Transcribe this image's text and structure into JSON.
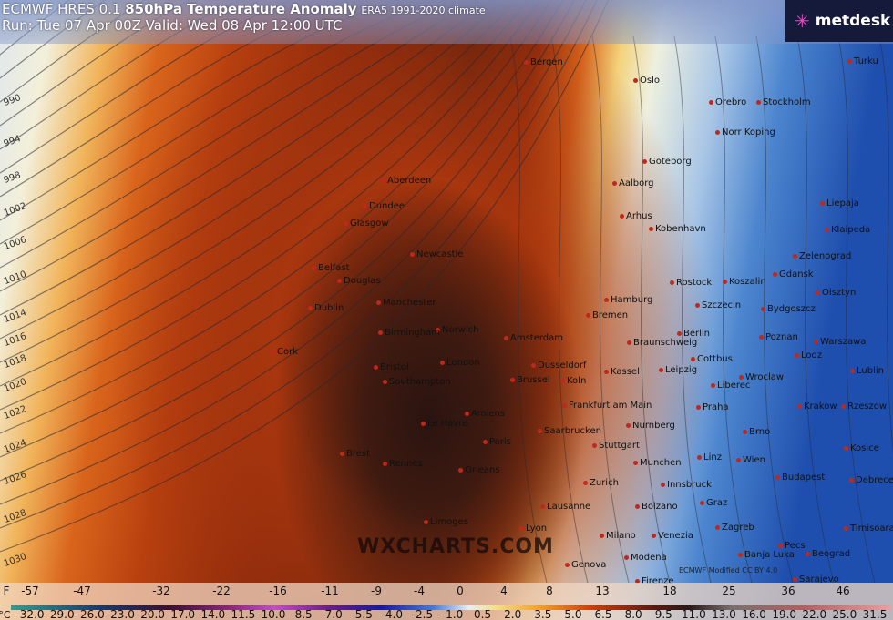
{
  "header": {
    "model": "ECMWF HRES 0.1",
    "product": "850hPa Temperature Anomaly",
    "climate": "ERA5 1991-2020 climate",
    "run_line": "Run: Tue 07 Apr 00Z Valid: Wed 08 Apr 12:00 UTC"
  },
  "logo": {
    "text": "metdesk"
  },
  "watermark": "WXCHARTS.COM",
  "credit": "ECMWF Modified CC BY 4.0",
  "isobars": [
    "990",
    "994",
    "998",
    "1002",
    "1006",
    "1010",
    "1014",
    "1016",
    "1018",
    "1020",
    "1022",
    "1024",
    "1026",
    "1028",
    "1030"
  ],
  "cities": [
    "Bergen",
    "Oslo",
    "Orebro",
    "Stockholm",
    "Turku",
    "Norr Koping",
    "Goteborg",
    "Aalborg",
    "Aberdeen",
    "Dundee",
    "Glasgow",
    "Arhus",
    "Kobenhavn",
    "Liepaja",
    "Klaipeda",
    "Belfast",
    "Newcastle",
    "Douglas",
    "Rostock",
    "Zelenograd",
    "Gdansk",
    "Olsztyn",
    "Dublin",
    "Manchester",
    "Hamburg",
    "Koszalin",
    "Szczecin",
    "Bydgoszcz",
    "Norwich",
    "Amsterdam",
    "Bremen",
    "Birmingham",
    "Cork",
    "Berlin",
    "Poznan",
    "Braunschweig",
    "Warszawa",
    "London",
    "Bristol",
    "Southampton",
    "Dusseldorf",
    "Koln",
    "Kassel",
    "Leipzig",
    "Cottbus",
    "Lodz",
    "Wroclaw",
    "Lublin",
    "Liberec",
    "Brussel",
    "Frankfurt am Main",
    "Praha",
    "Krakow",
    "Rzeszow",
    "Amiens",
    "Le Havre",
    "Saarbrucken",
    "Nurnberg",
    "Brno",
    "Paris",
    "Stuttgart",
    "Kosice",
    "Brest",
    "Rennes",
    "Orleans",
    "Munchen",
    "Linz",
    "Wien",
    "Debrecen",
    "Zurich",
    "Innsbruck",
    "Budapest",
    "Graz",
    "Lausanne",
    "Bolzano",
    "Lyon",
    "Limoges",
    "Milano",
    "Venezia",
    "Zagreb",
    "Pecs",
    "Timisoara",
    "Genova",
    "Modena",
    "Banja Luka",
    "Beograd",
    "Firenze",
    "Sarajevo"
  ],
  "colorbar": {
    "unit_f": "F",
    "unit_c": "°C",
    "fahrenheit": [
      "-57",
      "-47",
      "-32",
      "-22",
      "-16",
      "-11",
      "-9",
      "-4",
      "0",
      "4",
      "8",
      "13",
      "18",
      "25",
      "36",
      "46"
    ],
    "celsius": [
      "-32.0",
      "-29.0",
      "-26.0",
      "-23.0",
      "-20.0",
      "-17.0",
      "-14.0",
      "-11.5",
      "-10.0",
      "-8.5",
      "-7.0",
      "-5.5",
      "-4.0",
      "-2.5",
      "-1.0",
      "0.5",
      "2.0",
      "3.5",
      "5.0",
      "6.5",
      "8.0",
      "9.5",
      "11.0",
      "13.0",
      "16.0",
      "19.0",
      "22.0",
      "25.0",
      "31.5"
    ]
  }
}
